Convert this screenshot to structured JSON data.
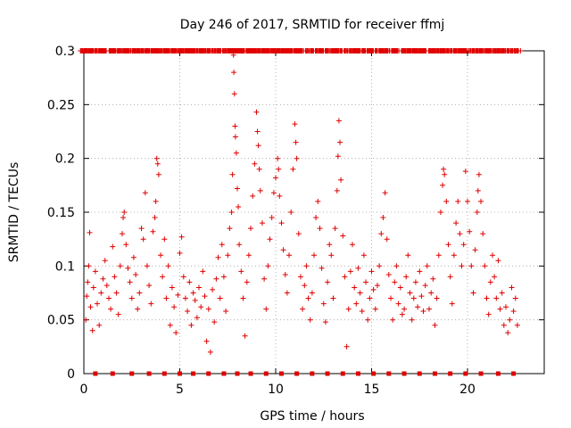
{
  "chart_data": {
    "type": "scatter",
    "title": "Day 246 of 2017, SRMTID for receiver ffmj",
    "xlabel": "GPS time / hours",
    "ylabel": "SRMTID / TECUs",
    "xlim": [
      0,
      24
    ],
    "ylim": [
      0,
      0.3
    ],
    "xticks": [
      0,
      5,
      10,
      15,
      20
    ],
    "yticks": [
      0,
      0.05,
      0.1,
      0.15,
      0.2,
      0.25,
      0.3
    ],
    "grid": true,
    "legend": "none",
    "marker": "plus",
    "color": "#e00000",
    "series": [
      {
        "name": "SRMTID",
        "points": [
          [
            0.1,
            0.05
          ],
          [
            0.15,
            0.072
          ],
          [
            0.2,
            0.085
          ],
          [
            0.25,
            0.1
          ],
          [
            0.3,
            0.131
          ],
          [
            0.35,
            0.062
          ],
          [
            0.45,
            0.04
          ],
          [
            0.5,
            0.08
          ],
          [
            0.6,
            0.095
          ],
          [
            0.7,
            0.065
          ],
          [
            0.8,
            0.045
          ],
          [
            0.9,
            0.075
          ],
          [
            1.0,
            0.088
          ],
          [
            1.1,
            0.105
          ],
          [
            1.2,
            0.082
          ],
          [
            1.3,
            0.07
          ],
          [
            1.4,
            0.06
          ],
          [
            1.5,
            0.118
          ],
          [
            1.6,
            0.09
          ],
          [
            1.7,
            0.075
          ],
          [
            1.8,
            0.055
          ],
          [
            1.9,
            0.1
          ],
          [
            2.0,
            0.13
          ],
          [
            2.05,
            0.145
          ],
          [
            2.1,
            0.15
          ],
          [
            2.2,
            0.12
          ],
          [
            2.3,
            0.098
          ],
          [
            2.4,
            0.085
          ],
          [
            2.5,
            0.07
          ],
          [
            2.6,
            0.108
          ],
          [
            2.7,
            0.092
          ],
          [
            2.8,
            0.06
          ],
          [
            2.9,
            0.075
          ],
          [
            3.0,
            0.135
          ],
          [
            3.1,
            0.125
          ],
          [
            3.2,
            0.168
          ],
          [
            3.3,
            0.1
          ],
          [
            3.4,
            0.082
          ],
          [
            3.5,
            0.065
          ],
          [
            3.6,
            0.132
          ],
          [
            3.7,
            0.145
          ],
          [
            3.75,
            0.16
          ],
          [
            3.8,
            0.2
          ],
          [
            3.85,
            0.195
          ],
          [
            3.9,
            0.185
          ],
          [
            4.0,
            0.11
          ],
          [
            4.1,
            0.09
          ],
          [
            4.2,
            0.125
          ],
          [
            4.3,
            0.07
          ],
          [
            4.4,
            0.1
          ],
          [
            4.5,
            0.045
          ],
          [
            4.6,
            0.08
          ],
          [
            4.7,
            0.062
          ],
          [
            4.8,
            0.038
          ],
          [
            4.9,
            0.073
          ],
          [
            5.0,
            0.112
          ],
          [
            5.1,
            0.127
          ],
          [
            5.2,
            0.09
          ],
          [
            5.3,
            0.07
          ],
          [
            5.4,
            0.058
          ],
          [
            5.5,
            0.085
          ],
          [
            5.6,
            0.045
          ],
          [
            5.7,
            0.075
          ],
          [
            5.8,
            0.068
          ],
          [
            5.9,
            0.052
          ],
          [
            6.0,
            0.08
          ],
          [
            6.1,
            0.062
          ],
          [
            6.2,
            0.095
          ],
          [
            6.3,
            0.072
          ],
          [
            6.4,
            0.03
          ],
          [
            6.5,
            0.06
          ],
          [
            6.6,
            0.02
          ],
          [
            6.7,
            0.078
          ],
          [
            6.8,
            0.048
          ],
          [
            6.9,
            0.088
          ],
          [
            7.0,
            0.108
          ],
          [
            7.1,
            0.07
          ],
          [
            7.2,
            0.12
          ],
          [
            7.3,
            0.09
          ],
          [
            7.4,
            0.058
          ],
          [
            7.5,
            0.11
          ],
          [
            7.6,
            0.135
          ],
          [
            7.7,
            0.15
          ],
          [
            7.75,
            0.185
          ],
          [
            7.8,
            0.296
          ],
          [
            7.82,
            0.28
          ],
          [
            7.85,
            0.26
          ],
          [
            7.88,
            0.23
          ],
          [
            7.9,
            0.22
          ],
          [
            7.95,
            0.205
          ],
          [
            8.0,
            0.172
          ],
          [
            8.05,
            0.155
          ],
          [
            8.1,
            0.12
          ],
          [
            8.2,
            0.095
          ],
          [
            8.3,
            0.07
          ],
          [
            8.4,
            0.035
          ],
          [
            8.5,
            0.085
          ],
          [
            8.6,
            0.11
          ],
          [
            8.7,
            0.135
          ],
          [
            8.8,
            0.165
          ],
          [
            8.9,
            0.195
          ],
          [
            9.0,
            0.243
          ],
          [
            9.05,
            0.225
          ],
          [
            9.1,
            0.212
          ],
          [
            9.15,
            0.19
          ],
          [
            9.2,
            0.17
          ],
          [
            9.3,
            0.14
          ],
          [
            9.4,
            0.088
          ],
          [
            9.5,
            0.06
          ],
          [
            9.6,
            0.1
          ],
          [
            9.7,
            0.125
          ],
          [
            9.8,
            0.145
          ],
          [
            9.9,
            0.168
          ],
          [
            10.0,
            0.182
          ],
          [
            10.1,
            0.2
          ],
          [
            10.15,
            0.19
          ],
          [
            10.2,
            0.165
          ],
          [
            10.3,
            0.14
          ],
          [
            10.4,
            0.115
          ],
          [
            10.5,
            0.092
          ],
          [
            10.6,
            0.075
          ],
          [
            10.7,
            0.11
          ],
          [
            10.8,
            0.15
          ],
          [
            10.9,
            0.19
          ],
          [
            11.0,
            0.232
          ],
          [
            11.05,
            0.215
          ],
          [
            11.1,
            0.2
          ],
          [
            11.2,
            0.13
          ],
          [
            11.3,
            0.09
          ],
          [
            11.4,
            0.06
          ],
          [
            11.5,
            0.082
          ],
          [
            11.6,
            0.1
          ],
          [
            11.7,
            0.07
          ],
          [
            11.8,
            0.05
          ],
          [
            11.9,
            0.075
          ],
          [
            12.0,
            0.11
          ],
          [
            12.1,
            0.145
          ],
          [
            12.2,
            0.16
          ],
          [
            12.3,
            0.135
          ],
          [
            12.4,
            0.098
          ],
          [
            12.5,
            0.065
          ],
          [
            12.6,
            0.048
          ],
          [
            12.7,
            0.085
          ],
          [
            12.8,
            0.12
          ],
          [
            12.9,
            0.11
          ],
          [
            13.0,
            0.07
          ],
          [
            13.1,
            0.135
          ],
          [
            13.2,
            0.17
          ],
          [
            13.25,
            0.202
          ],
          [
            13.3,
            0.235
          ],
          [
            13.35,
            0.215
          ],
          [
            13.4,
            0.18
          ],
          [
            13.5,
            0.128
          ],
          [
            13.6,
            0.09
          ],
          [
            13.7,
            0.025
          ],
          [
            13.8,
            0.06
          ],
          [
            13.9,
            0.095
          ],
          [
            14.0,
            0.12
          ],
          [
            14.1,
            0.08
          ],
          [
            14.2,
            0.065
          ],
          [
            14.3,
            0.098
          ],
          [
            14.4,
            0.075
          ],
          [
            14.5,
            0.058
          ],
          [
            14.6,
            0.11
          ],
          [
            14.7,
            0.085
          ],
          [
            14.8,
            0.05
          ],
          [
            14.9,
            0.07
          ],
          [
            15.0,
            0.095
          ],
          [
            15.1,
            0.078
          ],
          [
            15.2,
            0.06
          ],
          [
            15.3,
            0.082
          ],
          [
            15.4,
            0.1
          ],
          [
            15.5,
            0.13
          ],
          [
            15.6,
            0.145
          ],
          [
            15.7,
            0.168
          ],
          [
            15.8,
            0.125
          ],
          [
            15.9,
            0.092
          ],
          [
            16.0,
            0.07
          ],
          [
            16.1,
            0.05
          ],
          [
            16.2,
            0.085
          ],
          [
            16.3,
            0.1
          ],
          [
            16.4,
            0.065
          ],
          [
            16.5,
            0.08
          ],
          [
            16.6,
            0.055
          ],
          [
            16.7,
            0.06
          ],
          [
            16.8,
            0.09
          ],
          [
            16.9,
            0.11
          ],
          [
            17.0,
            0.075
          ],
          [
            17.1,
            0.05
          ],
          [
            17.2,
            0.07
          ],
          [
            17.3,
            0.085
          ],
          [
            17.4,
            0.062
          ],
          [
            17.5,
            0.095
          ],
          [
            17.6,
            0.072
          ],
          [
            17.7,
            0.058
          ],
          [
            17.8,
            0.082
          ],
          [
            17.9,
            0.1
          ],
          [
            18.0,
            0.06
          ],
          [
            18.1,
            0.075
          ],
          [
            18.2,
            0.088
          ],
          [
            18.3,
            0.045
          ],
          [
            18.4,
            0.07
          ],
          [
            18.5,
            0.11
          ],
          [
            18.6,
            0.15
          ],
          [
            18.7,
            0.175
          ],
          [
            18.75,
            0.19
          ],
          [
            18.8,
            0.185
          ],
          [
            18.9,
            0.16
          ],
          [
            19.0,
            0.12
          ],
          [
            19.1,
            0.09
          ],
          [
            19.2,
            0.065
          ],
          [
            19.3,
            0.11
          ],
          [
            19.4,
            0.14
          ],
          [
            19.5,
            0.16
          ],
          [
            19.6,
            0.13
          ],
          [
            19.7,
            0.1
          ],
          [
            19.8,
            0.12
          ],
          [
            19.9,
            0.188
          ],
          [
            20.0,
            0.16
          ],
          [
            20.1,
            0.132
          ],
          [
            20.2,
            0.1
          ],
          [
            20.3,
            0.075
          ],
          [
            20.4,
            0.115
          ],
          [
            20.5,
            0.15
          ],
          [
            20.55,
            0.17
          ],
          [
            20.6,
            0.185
          ],
          [
            20.7,
            0.16
          ],
          [
            20.8,
            0.13
          ],
          [
            20.9,
            0.1
          ],
          [
            21.0,
            0.07
          ],
          [
            21.1,
            0.055
          ],
          [
            21.2,
            0.085
          ],
          [
            21.3,
            0.11
          ],
          [
            21.4,
            0.09
          ],
          [
            21.5,
            0.07
          ],
          [
            21.6,
            0.105
          ],
          [
            21.7,
            0.06
          ],
          [
            21.8,
            0.075
          ],
          [
            21.9,
            0.045
          ],
          [
            22.0,
            0.062
          ],
          [
            22.1,
            0.038
          ],
          [
            22.2,
            0.05
          ],
          [
            22.3,
            0.08
          ],
          [
            22.4,
            0.058
          ],
          [
            22.5,
            0.07
          ],
          [
            22.6,
            0.045
          ]
        ]
      }
    ],
    "axis_markers": {
      "name": "station markers",
      "y": 0,
      "x": [
        0.6,
        1.5,
        2.5,
        3.4,
        4.2,
        5.0,
        5.7,
        6.5,
        7.3,
        8.0,
        8.7,
        9.5,
        10.3,
        11.1,
        11.9,
        12.7,
        13.5,
        14.3,
        15.1,
        15.9,
        16.7,
        17.5,
        18.3,
        19.1,
        19.9,
        20.7,
        21.6,
        22.4
      ]
    }
  }
}
